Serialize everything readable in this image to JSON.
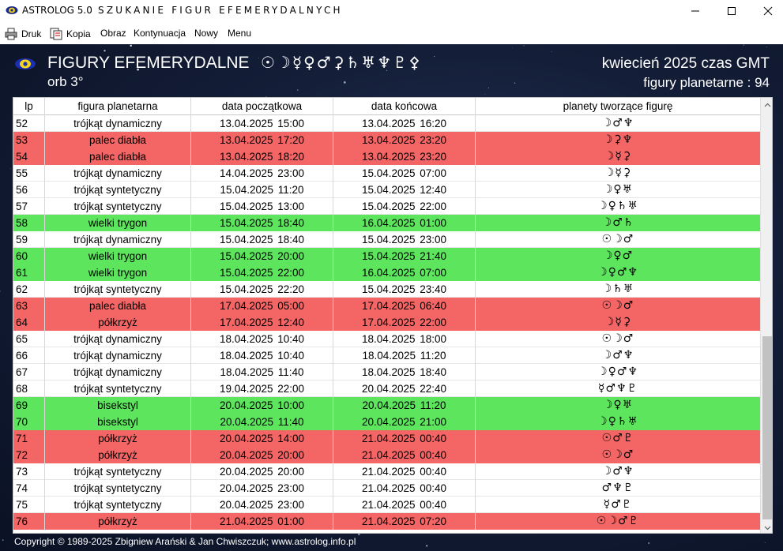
{
  "titlebar": {
    "app_name": "ASTROLOG 5.0",
    "window_title": "SZUKANIE FIGUR EFEMERYDALNYCH"
  },
  "menu": {
    "items": [
      {
        "label": "Druk",
        "icon": "printer-icon"
      },
      {
        "label": "Kopia",
        "icon": "copy-icon"
      },
      {
        "label": "Obraz"
      },
      {
        "label": "Kontynuacja"
      },
      {
        "label": "Nowy"
      },
      {
        "label": "Menu"
      }
    ]
  },
  "header": {
    "title": "FIGURY EFEMERYDALNE",
    "planet_symbols": "☉☽☿♀♂⚳♄♅♆♇⚴",
    "orb": "orb 3°",
    "month": "kwiecień 2025 czas GMT",
    "count": "figury planetarne : 94"
  },
  "table": {
    "columns": [
      "lp",
      "figura planetarna",
      "data początkowa",
      "data końcowa",
      "planety tworzące figurę"
    ],
    "rows": [
      {
        "lp": "52",
        "figure": "trójkąt dynamiczny",
        "start": "13.04.2025  15:00",
        "end": "13.04.2025  16:20",
        "planets": "☽♂♆",
        "color": "white"
      },
      {
        "lp": "53",
        "figure": "palec diabła",
        "start": "13.04.2025  17:20",
        "end": "13.04.2025  23:20",
        "planets": "☽⚳♆",
        "color": "red"
      },
      {
        "lp": "54",
        "figure": "palec diabła",
        "start": "13.04.2025  18:20",
        "end": "13.04.2025  23:20",
        "planets": "☽☿⚳",
        "color": "red"
      },
      {
        "lp": "55",
        "figure": "trójkąt dynamiczny",
        "start": "14.04.2025  23:00",
        "end": "15.04.2025  07:00",
        "planets": "☽☿⚳",
        "color": "white"
      },
      {
        "lp": "56",
        "figure": "trójkąt syntetyczny",
        "start": "15.04.2025  11:20",
        "end": "15.04.2025  12:40",
        "planets": "☽♀♅",
        "color": "white"
      },
      {
        "lp": "57",
        "figure": "trójkąt syntetyczny",
        "start": "15.04.2025  13:00",
        "end": "15.04.2025  22:00",
        "planets": "☽♀♄♅",
        "color": "white"
      },
      {
        "lp": "58",
        "figure": "wielki trygon",
        "start": "15.04.2025  18:40",
        "end": "16.04.2025  01:00",
        "planets": "☽♂♄",
        "color": "green"
      },
      {
        "lp": "59",
        "figure": "trójkąt dynamiczny",
        "start": "15.04.2025  18:40",
        "end": "15.04.2025  23:00",
        "planets": "☉☽♂",
        "color": "white"
      },
      {
        "lp": "60",
        "figure": "wielki trygon",
        "start": "15.04.2025  20:00",
        "end": "15.04.2025  21:40",
        "planets": "☽♀♂",
        "color": "green"
      },
      {
        "lp": "61",
        "figure": "wielki trygon",
        "start": "15.04.2025  22:00",
        "end": "16.04.2025  07:00",
        "planets": "☽♀♂♆",
        "color": "green"
      },
      {
        "lp": "62",
        "figure": "trójkąt syntetyczny",
        "start": "15.04.2025  22:20",
        "end": "15.04.2025  23:40",
        "planets": "☽♄♅",
        "color": "white"
      },
      {
        "lp": "63",
        "figure": "palec diabła",
        "start": "17.04.2025  05:00",
        "end": "17.04.2025  06:40",
        "planets": "☉☽♂",
        "color": "red"
      },
      {
        "lp": "64",
        "figure": "półkrzyż",
        "start": "17.04.2025  12:40",
        "end": "17.04.2025  22:00",
        "planets": "☽☿⚳",
        "color": "red"
      },
      {
        "lp": "65",
        "figure": "trójkąt dynamiczny",
        "start": "18.04.2025  10:40",
        "end": "18.04.2025  18:00",
        "planets": "☉☽♂",
        "color": "white"
      },
      {
        "lp": "66",
        "figure": "trójkąt dynamiczny",
        "start": "18.04.2025  10:40",
        "end": "18.04.2025  11:20",
        "planets": "☽♂♆",
        "color": "white"
      },
      {
        "lp": "67",
        "figure": "trójkąt dynamiczny",
        "start": "18.04.2025  11:40",
        "end": "18.04.2025  18:40",
        "planets": "☽♀♂♆",
        "color": "white"
      },
      {
        "lp": "68",
        "figure": "trójkąt syntetyczny",
        "start": "19.04.2025  22:00",
        "end": "20.04.2025  22:40",
        "planets": "☿♂♆♇",
        "color": "white"
      },
      {
        "lp": "69",
        "figure": "bisekstyl",
        "start": "20.04.2025  10:00",
        "end": "20.04.2025  11:20",
        "planets": "☽♀♅",
        "color": "green"
      },
      {
        "lp": "70",
        "figure": "bisekstyl",
        "start": "20.04.2025  11:40",
        "end": "20.04.2025  21:00",
        "planets": "☽♀♄♅",
        "color": "green"
      },
      {
        "lp": "71",
        "figure": "półkrzyż",
        "start": "20.04.2025  14:00",
        "end": "21.04.2025  00:40",
        "planets": "☉♂♇",
        "color": "red"
      },
      {
        "lp": "72",
        "figure": "półkrzyż",
        "start": "20.04.2025  20:00",
        "end": "21.04.2025  00:40",
        "planets": "☉☽♂",
        "color": "red"
      },
      {
        "lp": "73",
        "figure": "trójkąt syntetyczny",
        "start": "20.04.2025  20:00",
        "end": "21.04.2025  00:40",
        "planets": "☽♂♆",
        "color": "white"
      },
      {
        "lp": "74",
        "figure": "trójkąt syntetyczny",
        "start": "20.04.2025  23:00",
        "end": "21.04.2025  00:40",
        "planets": "♂♆♇",
        "color": "white"
      },
      {
        "lp": "75",
        "figure": "trójkąt syntetyczny",
        "start": "20.04.2025  23:00",
        "end": "21.04.2025  00:40",
        "planets": "☿♂♇",
        "color": "white"
      },
      {
        "lp": "76",
        "figure": "półkrzyż",
        "start": "21.04.2025  01:00",
        "end": "21.04.2025  07:20",
        "planets": "☉☽♂♇",
        "color": "red"
      }
    ]
  },
  "footer": {
    "copyright": "Copyright © 1989-2025 Zbigniew Arański & Jan Chwiszczuk; www.astrolog.info.pl"
  },
  "colors": {
    "red_row": "#f46565",
    "green_row": "#5de55d",
    "background": "#141e38"
  }
}
